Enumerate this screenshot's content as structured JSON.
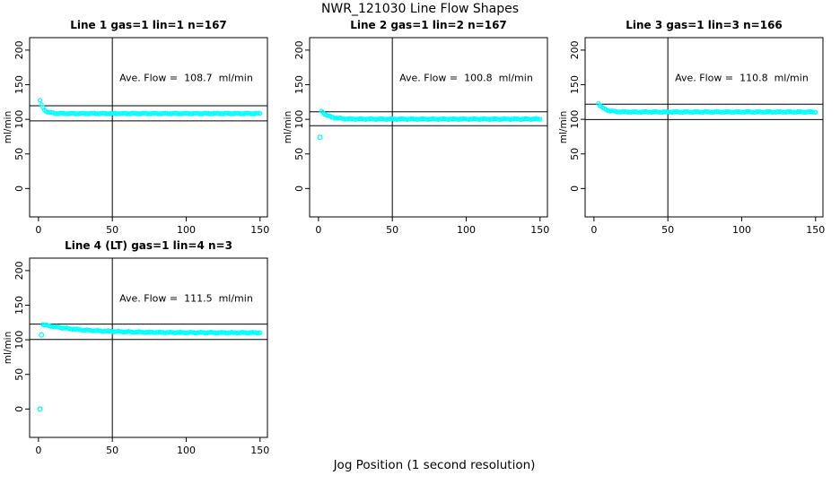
{
  "figure": {
    "title": "NWR_121030  Line Flow Shapes",
    "xlabel": "Jog Position (1 second resolution)",
    "background": "#FFFFFF"
  },
  "chart_data": {
    "type": "scatter",
    "title": "NWR_121030  Line Flow Shapes",
    "xlabel": "Jog Position (1 second resolution)",
    "ylabel": "ml/min",
    "x_ticks": [
      0,
      50,
      100,
      150
    ],
    "y_ticks": [
      0,
      50,
      100,
      150,
      200
    ],
    "xlim": [
      -6,
      155
    ],
    "ylim": [
      -41,
      218
    ],
    "grid": false,
    "legend": "none",
    "marker": "open-circle",
    "point_color": "#00FFFF",
    "axis_color": "#000000",
    "vline_x": 50,
    "annotation_xy": [
      100,
      155
    ],
    "subplots": [
      {
        "title": "Line 1 gas=1 lin=1 n=167",
        "annotation": "Ave. Flow =  108.7  ml/min",
        "ave_flow": 108.7,
        "n": 167,
        "ref_lines": [
          119.6,
          97.8
        ],
        "series": {
          "x_start": 1,
          "x_end": 150,
          "peak": 127,
          "steady": 108.5,
          "decay_tau": 2.5
        },
        "outliers": []
      },
      {
        "title": "Line 2 gas=1 lin=2 n=167",
        "annotation": "Ave. Flow =  100.8  ml/min",
        "ave_flow": 100.8,
        "n": 167,
        "ref_lines": [
          110.9,
          90.7
        ],
        "series": {
          "x_start": 2,
          "x_end": 150,
          "peak": 112,
          "steady": 100.4,
          "decay_tau": 5
        },
        "outliers": [
          [
            1,
            74
          ]
        ]
      },
      {
        "title": "Line 3 gas=1 lin=3 n=166",
        "annotation": "Ave. Flow =  110.8  ml/min",
        "ave_flow": 110.8,
        "n": 166,
        "ref_lines": [
          121.9,
          99.7
        ],
        "series": {
          "x_start": 3,
          "x_end": 150,
          "peak": 123,
          "steady": 110.6,
          "decay_tau": 4
        },
        "outliers": []
      },
      {
        "title": "Line 4 (LT) gas=1 lin=4 n=3",
        "annotation": "Ave. Flow =  111.5  ml/min",
        "ave_flow": 111.5,
        "n": 3,
        "ref_lines": [
          122.7,
          100.4
        ],
        "series": {
          "x_start": 3,
          "x_end": 150,
          "peak": 122,
          "steady": 110.2,
          "decay_tau": 26
        },
        "outliers": [
          [
            1,
            0
          ],
          [
            2,
            107
          ]
        ]
      }
    ]
  }
}
